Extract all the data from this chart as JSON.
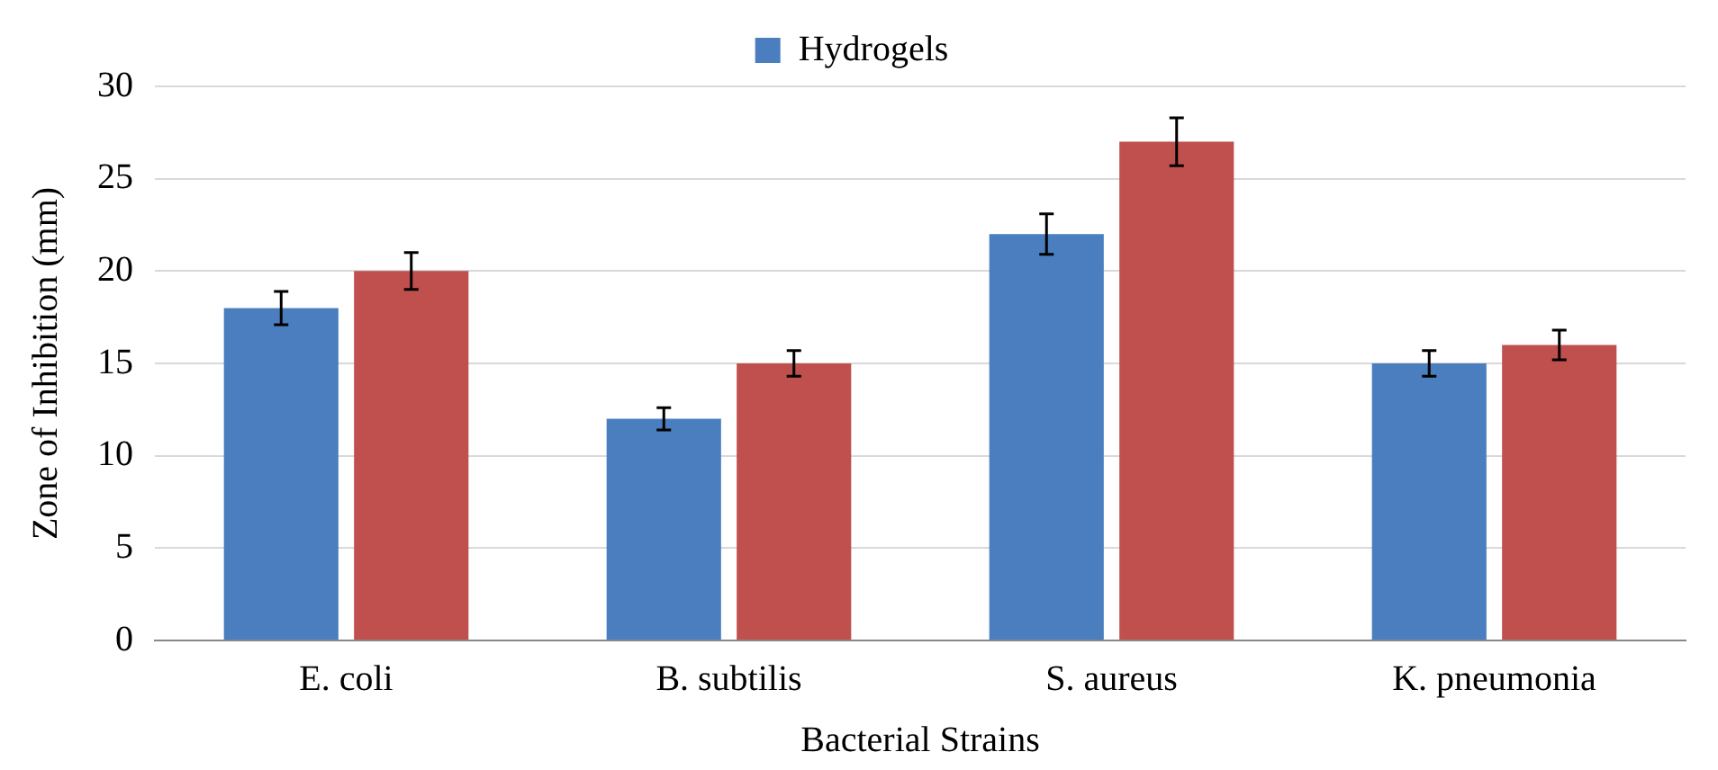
{
  "chart_data": {
    "type": "bar",
    "xlabel": "Bacterial Strains",
    "ylabel": "Zone of Inhibition (mm)",
    "categories": [
      "E. coli",
      "B. subtilis",
      "S. aureus",
      "K. pneumonia"
    ],
    "series": [
      {
        "name": "Hydrogels",
        "color": "#4a7ebf",
        "values": [
          18,
          12,
          22,
          15
        ],
        "errors": [
          0.9,
          0.6,
          1.1,
          0.7
        ]
      },
      {
        "color": "#c0504d",
        "values": [
          20,
          15,
          27,
          16
        ],
        "errors": [
          1,
          0.7,
          1.3,
          0.8
        ]
      }
    ],
    "ylim": [
      0,
      30
    ],
    "yticks": [
      0,
      5,
      10,
      15,
      20,
      25,
      30
    ],
    "grid": "y",
    "legend": "top"
  }
}
